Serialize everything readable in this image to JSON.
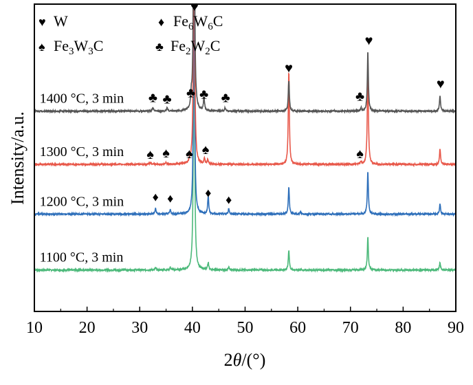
{
  "chart_data": {
    "type": "line",
    "xlabel_prefix": "2",
    "xlabel_theta": "θ",
    "xlabel_suffix": "/(°)",
    "ylabel": "Intensity/a.u.",
    "xlim": [
      10,
      90
    ],
    "ylim": [
      0,
      445
    ],
    "xticks": [
      10,
      20,
      30,
      40,
      50,
      60,
      70,
      80,
      90
    ],
    "legend": [
      {
        "symbol": "♥",
        "label": "W",
        "sub": []
      },
      {
        "symbol": "♦",
        "label": "Fe6W6C",
        "parts": [
          "Fe",
          "6",
          "W",
          "6",
          "C"
        ]
      },
      {
        "symbol": "♠",
        "label": "Fe3W3C",
        "parts": [
          "Fe",
          "3",
          "W",
          "3",
          "C"
        ]
      },
      {
        "symbol": "♣",
        "label": "Fe2W2C",
        "parts": [
          "Fe",
          "2",
          "W",
          "2",
          "C"
        ]
      }
    ],
    "series": [
      {
        "name": "1100 °C, 3 min",
        "color": "#4cb97a",
        "baseline": 60,
        "peaks": [
          [
            33,
            3
          ],
          [
            35.8,
            4
          ],
          [
            40.3,
            450
          ],
          [
            43,
            10
          ],
          [
            46.9,
            4
          ],
          [
            58.3,
            28
          ],
          [
            73.3,
            48
          ],
          [
            87,
            11
          ]
        ],
        "markers": []
      },
      {
        "name": "1200 °C, 3 min",
        "color": "#2e6fba",
        "baseline": 141,
        "peaks": [
          [
            33,
            8
          ],
          [
            35.8,
            6
          ],
          [
            40.3,
            400
          ],
          [
            43,
            25
          ],
          [
            46.9,
            8
          ],
          [
            58.3,
            38
          ],
          [
            60.5,
            3
          ],
          [
            73.3,
            62
          ],
          [
            87,
            15
          ]
        ],
        "markers": [
          {
            "x": 33,
            "y": 160,
            "symbol": "♦"
          },
          {
            "x": 35.8,
            "y": 158,
            "symbol": "♦"
          },
          {
            "x": 43,
            "y": 166,
            "symbol": "♦"
          },
          {
            "x": 46.9,
            "y": 156,
            "symbol": "♦"
          }
        ]
      },
      {
        "name": "1300 °C, 3 min",
        "color": "#e8584a",
        "baseline": 213,
        "peaks": [
          [
            32,
            3
          ],
          [
            35,
            3
          ],
          [
            39.5,
            5
          ],
          [
            40.3,
            450
          ],
          [
            42.3,
            8
          ],
          [
            42.9,
            6
          ],
          [
            58.3,
            135
          ],
          [
            72,
            4
          ],
          [
            73.3,
            150
          ],
          [
            87,
            23
          ]
        ],
        "markers": [
          {
            "x": 32,
            "y": 221,
            "symbol": "♠"
          },
          {
            "x": 35,
            "y": 223,
            "symbol": "♠"
          },
          {
            "x": 39.4,
            "y": 222,
            "symbol": "♠"
          },
          {
            "x": 42.5,
            "y": 228,
            "symbol": "♠"
          },
          {
            "x": 71.8,
            "y": 222,
            "symbol": "♠"
          }
        ]
      },
      {
        "name": "1400 °C, 3 min",
        "color": "#555555",
        "baseline": 290,
        "peaks": [
          [
            32.5,
            5
          ],
          [
            35.2,
            5
          ],
          [
            39.8,
            15
          ],
          [
            40.3,
            450
          ],
          [
            42.2,
            20
          ],
          [
            46.2,
            5
          ],
          [
            58.3,
            45
          ],
          [
            72,
            5
          ],
          [
            73.3,
            87
          ],
          [
            87,
            23
          ]
        ],
        "markers": [
          {
            "x": 32.5,
            "y": 303,
            "symbol": "♣"
          },
          {
            "x": 35.2,
            "y": 301,
            "symbol": "♣"
          },
          {
            "x": 39.7,
            "y": 310,
            "symbol": "♣"
          },
          {
            "x": 42.2,
            "y": 308,
            "symbol": "♣"
          },
          {
            "x": 46.3,
            "y": 303,
            "symbol": "♣"
          },
          {
            "x": 71.8,
            "y": 305,
            "symbol": "♣"
          },
          {
            "x": 40.4,
            "y": 435,
            "symbol": "♥"
          },
          {
            "x": 58.3,
            "y": 346,
            "symbol": "♥"
          },
          {
            "x": 73.5,
            "y": 386,
            "symbol": "♥"
          },
          {
            "x": 87.1,
            "y": 323,
            "symbol": "♥"
          }
        ]
      }
    ]
  }
}
